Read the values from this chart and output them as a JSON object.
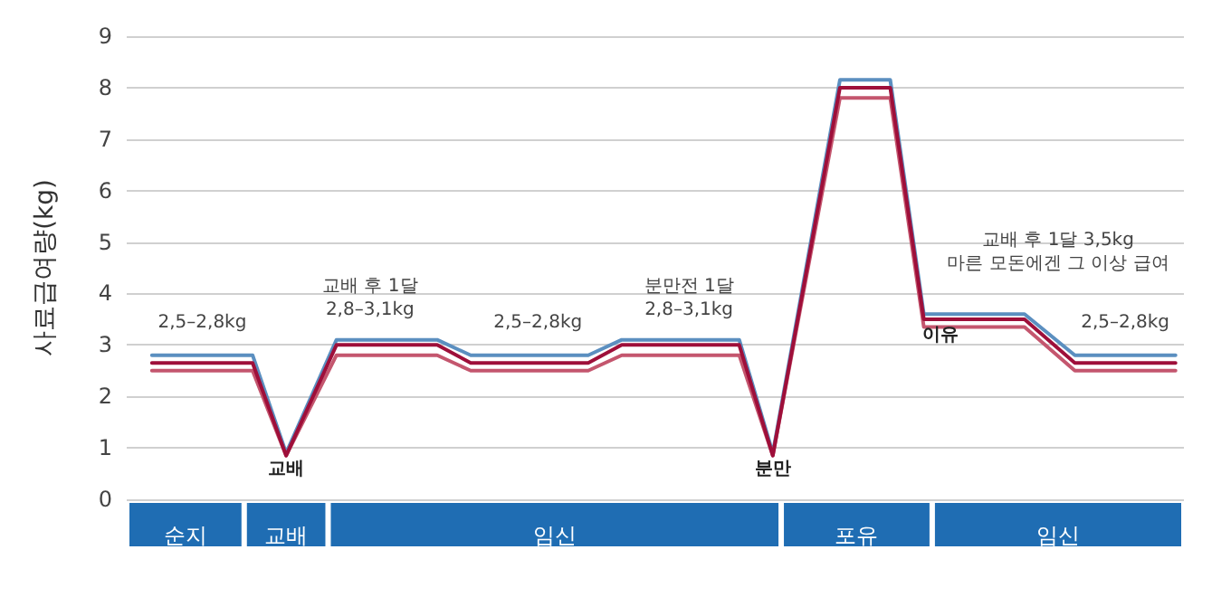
{
  "chart_data": {
    "type": "line",
    "ylabel": "사료급여량(kg)",
    "ylim": [
      0,
      9
    ],
    "yticks": [
      0,
      1,
      2,
      3,
      4,
      5,
      6,
      7,
      8,
      9
    ],
    "grid": "y",
    "marker": "none",
    "line_style": "solid",
    "categories": [
      null,
      null,
      null,
      "순지",
      null,
      null,
      null,
      null,
      null,
      "교배",
      null,
      null,
      null,
      null,
      null,
      null,
      null,
      null,
      null,
      null,
      null,
      null,
      null,
      null,
      null,
      "임신",
      null,
      null,
      null,
      null,
      null,
      null,
      null,
      null,
      null,
      null,
      null,
      null,
      null,
      null,
      null,
      null,
      null,
      "포유",
      null,
      null,
      null,
      null,
      null,
      null,
      null,
      null,
      null,
      null,
      null,
      "임신",
      null,
      null,
      null,
      null,
      null,
      null,
      null
    ],
    "series": [
      {
        "color": "#5b8fc0",
        "values": [
          null,
          2.8,
          null,
          null,
          null,
          null,
          null,
          2.8,
          null,
          0.9,
          null,
          null,
          3.1,
          null,
          null,
          null,
          null,
          null,
          3.1,
          null,
          2.8,
          null,
          null,
          null,
          null,
          null,
          null,
          2.8,
          null,
          3.1,
          null,
          null,
          null,
          null,
          null,
          null,
          3.1,
          null,
          0.9,
          null,
          null,
          null,
          8.15,
          null,
          null,
          8.15,
          null,
          3.6,
          null,
          null,
          null,
          null,
          null,
          3.6,
          null,
          null,
          2.8,
          null,
          null,
          null,
          null,
          null,
          2.8
        ]
      },
      {
        "color": "#c4566e",
        "values": [
          null,
          2.5,
          null,
          null,
          null,
          null,
          null,
          2.5,
          null,
          0.85,
          null,
          null,
          2.8,
          null,
          null,
          null,
          null,
          null,
          2.8,
          null,
          2.5,
          null,
          null,
          null,
          null,
          null,
          null,
          2.5,
          null,
          2.8,
          null,
          null,
          null,
          null,
          null,
          null,
          2.8,
          null,
          0.85,
          null,
          null,
          null,
          7.8,
          null,
          null,
          7.8,
          null,
          3.35,
          null,
          null,
          null,
          null,
          null,
          3.35,
          null,
          null,
          2.5,
          null,
          null,
          null,
          null,
          null,
          2.5
        ]
      },
      {
        "color": "#9e0f3a",
        "values": [
          null,
          2.65,
          null,
          null,
          null,
          null,
          null,
          2.65,
          null,
          0.85,
          null,
          null,
          3.0,
          null,
          null,
          null,
          null,
          null,
          3.0,
          null,
          2.65,
          null,
          null,
          null,
          null,
          null,
          null,
          2.65,
          null,
          3.0,
          null,
          null,
          null,
          null,
          null,
          null,
          3.0,
          null,
          0.85,
          null,
          null,
          null,
          8.0,
          null,
          null,
          8.0,
          null,
          3.5,
          null,
          null,
          null,
          null,
          null,
          3.5,
          null,
          null,
          2.65,
          null,
          null,
          null,
          null,
          null,
          2.65
        ]
      }
    ],
    "annotations": [
      "2,5–2,8kg",
      "교배 후 1달\n2,8–3,1kg",
      "2,5–2,8kg",
      "분만전 1달\n2,8–3,1kg",
      "교배 후 1달 3,5kg\n마른 모돈에겐 그 이상 급여",
      "2,5–2,8kg",
      "교배",
      "분만",
      "이유"
    ]
  }
}
